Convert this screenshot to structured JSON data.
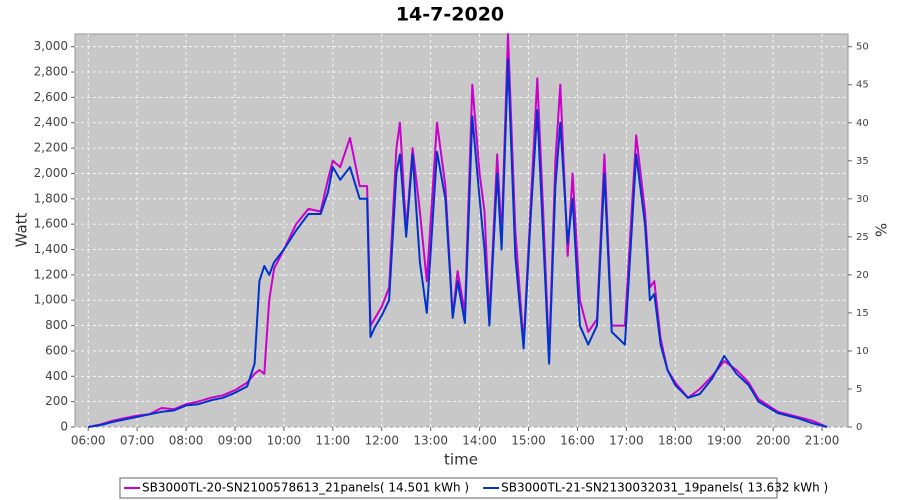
{
  "chart_data": {
    "type": "line",
    "title": "14-7-2020",
    "x_label": "time",
    "y_label": "Watt",
    "y2_label": "%",
    "x": [
      6.0,
      6.25,
      6.5,
      6.75,
      7.0,
      7.25,
      7.5,
      7.75,
      8.0,
      8.25,
      8.5,
      8.75,
      9.0,
      9.25,
      9.4,
      9.5,
      9.6,
      9.7,
      9.8,
      10.0,
      10.25,
      10.5,
      10.75,
      10.9,
      11.0,
      11.15,
      11.35,
      11.55,
      11.7,
      11.77,
      11.85,
      12.0,
      12.15,
      12.3,
      12.37,
      12.5,
      12.63,
      12.78,
      12.92,
      13.13,
      13.3,
      13.45,
      13.55,
      13.7,
      13.85,
      14.0,
      14.1,
      14.2,
      14.36,
      14.45,
      14.58,
      14.73,
      14.9,
      15.05,
      15.18,
      15.3,
      15.42,
      15.55,
      15.65,
      15.8,
      15.9,
      16.05,
      16.22,
      16.4,
      16.55,
      16.7,
      16.97,
      17.2,
      17.38,
      17.48,
      17.57,
      17.7,
      17.84,
      18.0,
      18.26,
      18.5,
      18.75,
      19.0,
      19.25,
      19.5,
      19.7,
      20.1,
      20.5,
      20.8,
      21.1
    ],
    "series": [
      {
        "name": "SB3000TL-20-SN2100578613_21panels( 14.501 kWh )",
        "color": "#cc00cc",
        "values": [
          0,
          20,
          50,
          70,
          90,
          100,
          150,
          140,
          180,
          200,
          230,
          250,
          290,
          350,
          420,
          450,
          420,
          1000,
          1250,
          1400,
          1600,
          1720,
          1700,
          1950,
          2100,
          2050,
          2280,
          1900,
          1900,
          800,
          850,
          950,
          1100,
          2200,
          2400,
          1550,
          2200,
          1700,
          1150,
          2400,
          1900,
          870,
          1230,
          900,
          2700,
          2000,
          1700,
          850,
          2150,
          1500,
          3100,
          1550,
          650,
          1800,
          2750,
          1700,
          550,
          2100,
          2700,
          1350,
          2000,
          1000,
          750,
          850,
          2150,
          800,
          800,
          2300,
          1700,
          1100,
          1150,
          700,
          450,
          350,
          230,
          300,
          400,
          520,
          450,
          350,
          220,
          120,
          80,
          50,
          0
        ]
      },
      {
        "name": "SB3000TL-21-SN2130032031_19panels( 13.632 kWh )",
        "color": "#0033cc",
        "values": [
          0,
          15,
          40,
          60,
          80,
          100,
          120,
          130,
          170,
          180,
          210,
          230,
          270,
          320,
          500,
          1150,
          1270,
          1200,
          1300,
          1400,
          1550,
          1680,
          1680,
          1850,
          2050,
          1950,
          2050,
          1800,
          1800,
          710,
          780,
          880,
          1000,
          2000,
          2150,
          1500,
          2150,
          1300,
          900,
          2170,
          1800,
          860,
          1150,
          820,
          2450,
          1800,
          1400,
          800,
          2000,
          1400,
          2900,
          1350,
          620,
          1700,
          2500,
          1500,
          500,
          1900,
          2400,
          1450,
          1800,
          800,
          650,
          800,
          2000,
          750,
          650,
          2150,
          1600,
          1000,
          1050,
          650,
          450,
          330,
          230,
          260,
          380,
          560,
          420,
          330,
          200,
          110,
          70,
          30,
          0
        ]
      }
    ],
    "xlim": [
      5.73,
      21.53
    ],
    "xticks": [
      {
        "value": 6,
        "label": "06:00"
      },
      {
        "value": 7,
        "label": "07:00"
      },
      {
        "value": 8,
        "label": "08:00"
      },
      {
        "value": 9,
        "label": "09:00"
      },
      {
        "value": 10,
        "label": "10:00"
      },
      {
        "value": 11,
        "label": "11:00"
      },
      {
        "value": 12,
        "label": "12:00"
      },
      {
        "value": 13,
        "label": "13:00"
      },
      {
        "value": 14,
        "label": "14:00"
      },
      {
        "value": 15,
        "label": "15:00"
      },
      {
        "value": 16,
        "label": "16:00"
      },
      {
        "value": 17,
        "label": "17:00"
      },
      {
        "value": 18,
        "label": "18:00"
      },
      {
        "value": 19,
        "label": "19:00"
      },
      {
        "value": 20,
        "label": "20:00"
      },
      {
        "value": 21,
        "label": "21:00"
      }
    ],
    "ylim": [
      0,
      3100
    ],
    "yticks": [
      0,
      200,
      400,
      600,
      800,
      {
        "value": 1000,
        "label": "1,000"
      },
      {
        "value": 1200,
        "label": "1,200"
      },
      {
        "value": 1400,
        "label": "1,400"
      },
      {
        "value": 1600,
        "label": "1,600"
      },
      {
        "value": 1800,
        "label": "1,800"
      },
      {
        "value": 2000,
        "label": "2,000"
      },
      {
        "value": 2200,
        "label": "2,200"
      },
      {
        "value": 2400,
        "label": "2,400"
      },
      {
        "value": 2600,
        "label": "2,600"
      },
      {
        "value": 2800,
        "label": "2,800"
      },
      {
        "value": 3000,
        "label": "3,000"
      }
    ],
    "y2lim": [
      0,
      51.67
    ],
    "y2ticks": [
      0,
      5,
      10,
      15,
      20,
      25,
      30,
      35,
      40,
      45,
      50
    ],
    "grid": true,
    "legend": "bottom",
    "plot_background": "#c8c8c8"
  }
}
